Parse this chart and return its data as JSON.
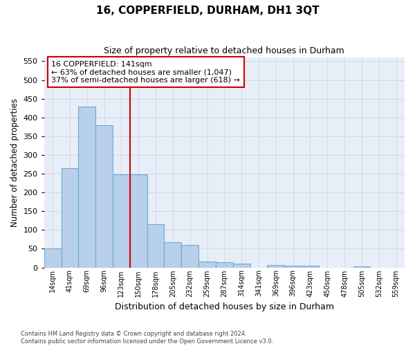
{
  "title": "16, COPPERFIELD, DURHAM, DH1 3QT",
  "subtitle": "Size of property relative to detached houses in Durham",
  "xlabel": "Distribution of detached houses by size in Durham",
  "ylabel": "Number of detached properties",
  "categories": [
    "14sqm",
    "41sqm",
    "69sqm",
    "96sqm",
    "123sqm",
    "150sqm",
    "178sqm",
    "205sqm",
    "232sqm",
    "259sqm",
    "287sqm",
    "314sqm",
    "341sqm",
    "369sqm",
    "396sqm",
    "423sqm",
    "450sqm",
    "478sqm",
    "505sqm",
    "532sqm",
    "559sqm"
  ],
  "values": [
    50,
    265,
    430,
    380,
    248,
    248,
    115,
    68,
    60,
    15,
    13,
    10,
    0,
    7,
    5,
    5,
    0,
    0,
    2,
    0,
    0
  ],
  "bar_color": "#b8d0ea",
  "bar_edge_color": "#6aaad4",
  "property_line_x": 5.0,
  "property_line_color": "#cc0000",
  "annotation_text": "16 COPPERFIELD: 141sqm\n← 63% of detached houses are smaller (1,047)\n37% of semi-detached houses are larger (618) →",
  "annotation_box_color": "#ffffff",
  "annotation_box_edge_color": "#cc0000",
  "ylim": [
    0,
    560
  ],
  "yticks": [
    0,
    50,
    100,
    150,
    200,
    250,
    300,
    350,
    400,
    450,
    500,
    550
  ],
  "footnote": "Contains HM Land Registry data © Crown copyright and database right 2024.\nContains public sector information licensed under the Open Government Licence v3.0.",
  "bg_color": "#ffffff",
  "plot_bg_color": "#e8eef8",
  "grid_color": "#c8d0e0"
}
